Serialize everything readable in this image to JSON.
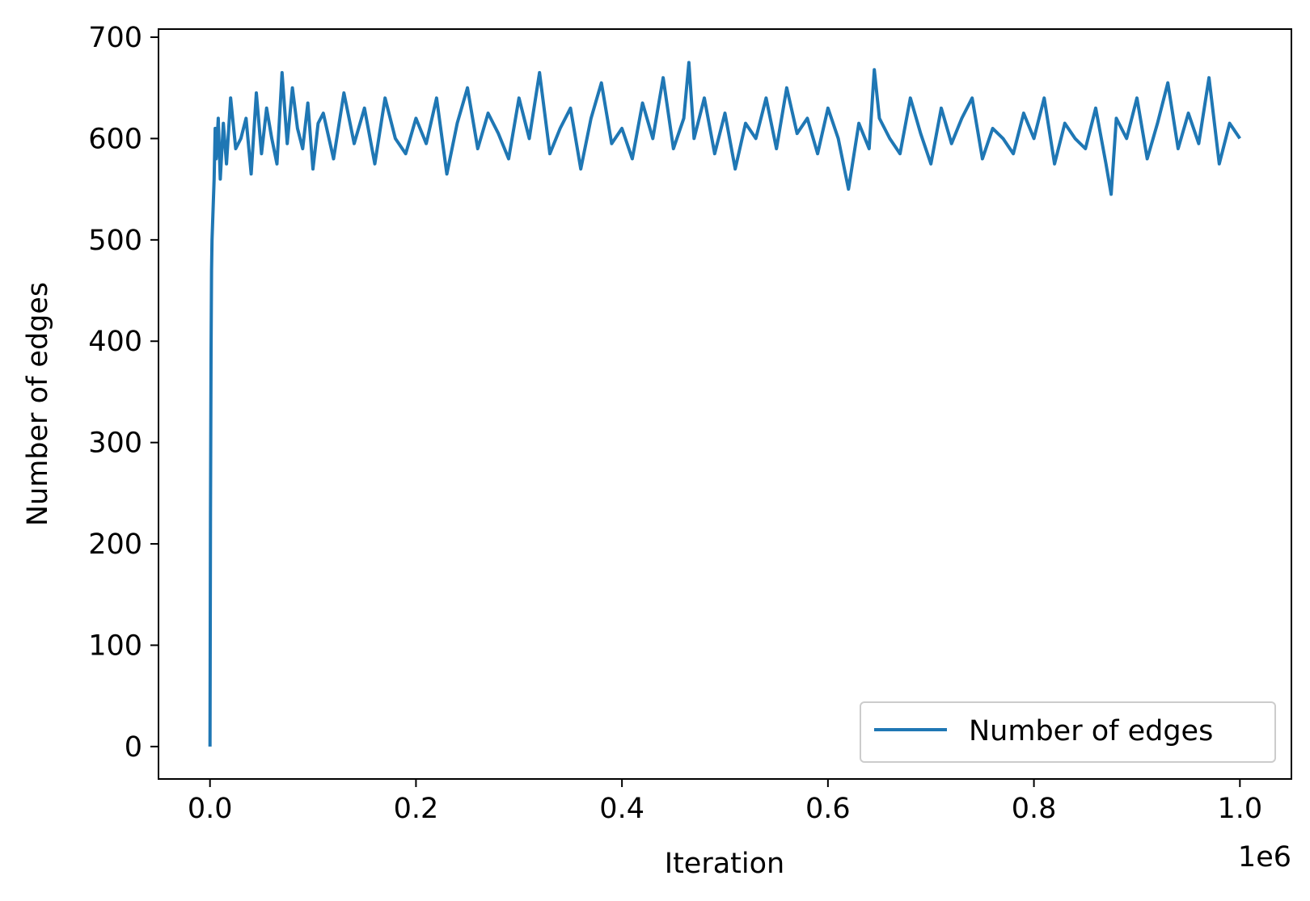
{
  "chart_data": {
    "type": "line",
    "xlabel": "Iteration",
    "ylabel": "Number of edges",
    "x_offset_label": "1e6",
    "xlim": [
      -0.05,
      1.05
    ],
    "ylim": [
      -32,
      708
    ],
    "x_ticks": [
      0.0,
      0.2,
      0.4,
      0.6,
      0.8,
      1.0
    ],
    "x_tick_labels": [
      "0.0",
      "0.2",
      "0.4",
      "0.6",
      "0.8",
      "1.0"
    ],
    "y_ticks": [
      0,
      100,
      200,
      300,
      400,
      500,
      600,
      700
    ],
    "y_tick_labels": [
      "0",
      "100",
      "200",
      "300",
      "400",
      "500",
      "600",
      "700"
    ],
    "grid": false,
    "legend": {
      "position": "lower-right",
      "entries": [
        "Number of edges"
      ]
    },
    "series": [
      {
        "name": "Number of edges",
        "color": "#1f77b4",
        "x": [
          0.0,
          0.0005,
          0.001,
          0.0015,
          0.002,
          0.003,
          0.004,
          0.005,
          0.006,
          0.008,
          0.01,
          0.013,
          0.016,
          0.02,
          0.025,
          0.03,
          0.035,
          0.04,
          0.045,
          0.05,
          0.055,
          0.06,
          0.065,
          0.07,
          0.075,
          0.08,
          0.085,
          0.09,
          0.095,
          0.1,
          0.105,
          0.11,
          0.12,
          0.13,
          0.14,
          0.15,
          0.16,
          0.17,
          0.18,
          0.19,
          0.2,
          0.21,
          0.22,
          0.23,
          0.24,
          0.25,
          0.26,
          0.27,
          0.28,
          0.29,
          0.3,
          0.31,
          0.32,
          0.33,
          0.34,
          0.35,
          0.36,
          0.37,
          0.38,
          0.39,
          0.4,
          0.41,
          0.42,
          0.43,
          0.44,
          0.45,
          0.46,
          0.465,
          0.47,
          0.48,
          0.49,
          0.5,
          0.51,
          0.52,
          0.53,
          0.54,
          0.55,
          0.56,
          0.57,
          0.58,
          0.59,
          0.6,
          0.61,
          0.62,
          0.63,
          0.64,
          0.645,
          0.65,
          0.66,
          0.67,
          0.68,
          0.69,
          0.7,
          0.71,
          0.72,
          0.73,
          0.74,
          0.75,
          0.76,
          0.77,
          0.78,
          0.79,
          0.8,
          0.81,
          0.82,
          0.83,
          0.84,
          0.85,
          0.86,
          0.87,
          0.875,
          0.88,
          0.89,
          0.9,
          0.91,
          0.92,
          0.93,
          0.94,
          0.95,
          0.96,
          0.97,
          0.98,
          0.99,
          1.0
        ],
        "values": [
          0,
          230,
          390,
          470,
          500,
          530,
          560,
          610,
          580,
          620,
          560,
          615,
          575,
          640,
          590,
          600,
          620,
          565,
          645,
          585,
          630,
          600,
          575,
          665,
          595,
          650,
          610,
          590,
          635,
          570,
          615,
          625,
          580,
          645,
          595,
          630,
          575,
          640,
          600,
          585,
          620,
          595,
          640,
          565,
          615,
          650,
          590,
          625,
          605,
          580,
          640,
          600,
          665,
          585,
          610,
          630,
          570,
          620,
          655,
          595,
          610,
          580,
          635,
          600,
          660,
          590,
          620,
          675,
          600,
          640,
          585,
          625,
          570,
          615,
          600,
          640,
          590,
          650,
          605,
          620,
          585,
          630,
          600,
          550,
          615,
          590,
          668,
          620,
          600,
          585,
          640,
          605,
          575,
          630,
          595,
          620,
          640,
          580,
          610,
          600,
          585,
          625,
          600,
          640,
          575,
          615,
          600,
          590,
          630,
          575,
          545,
          620,
          600,
          640,
          580,
          615,
          655,
          590,
          625,
          595,
          660,
          575,
          615,
          600
        ]
      }
    ]
  }
}
